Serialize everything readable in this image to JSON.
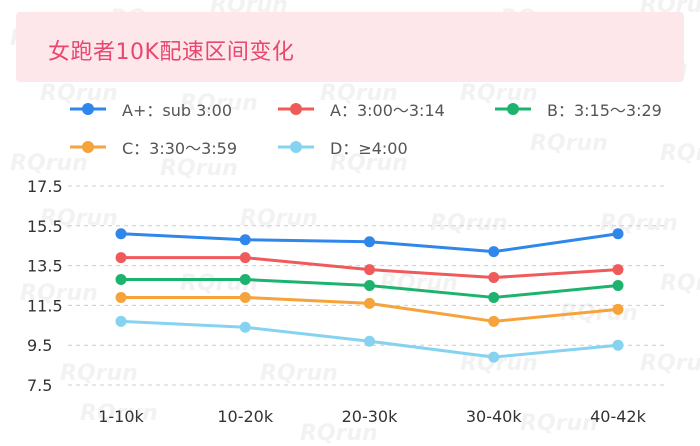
{
  "title": "女跑者10K配速区间变化",
  "watermark_text": "RQrun",
  "colors": {
    "title_bg": "#fde7ea",
    "title_text": "#e8476e",
    "grid": "#cccccc"
  },
  "chart_data": {
    "type": "line",
    "title": "女跑者10K配速区间变化",
    "xlabel": "",
    "ylabel": "",
    "categories": [
      "1-10k",
      "10-20k",
      "20-30k",
      "30-40k",
      "40-42k"
    ],
    "ylim": [
      7.5,
      17.5
    ],
    "yticks": [
      17.5,
      15.5,
      13.5,
      11.5,
      9.5,
      7.5
    ],
    "yticks_labels": [
      "17.5",
      "15.5",
      "13.5",
      "11.5",
      "9.5",
      "7.5"
    ],
    "grid": true,
    "legend_position": "top",
    "series": [
      {
        "name": "A+：sub 3:00",
        "color": "#2f86eb",
        "values": [
          15.1,
          14.8,
          14.7,
          14.2,
          15.1
        ]
      },
      {
        "name": "A：3:00～3:14",
        "color": "#f05a5a",
        "values": [
          13.9,
          13.9,
          13.3,
          12.9,
          13.3
        ]
      },
      {
        "name": "B：3:15～3:29",
        "color": "#1cb36f",
        "values": [
          12.8,
          12.8,
          12.5,
          11.9,
          12.5
        ]
      },
      {
        "name": "C：3:30～3:59",
        "color": "#f5a33a",
        "values": [
          11.9,
          11.9,
          11.6,
          10.7,
          11.3
        ]
      },
      {
        "name": "D：≥4:00",
        "color": "#85d3f0",
        "values": [
          10.7,
          10.4,
          9.7,
          8.9,
          9.5
        ]
      }
    ]
  }
}
